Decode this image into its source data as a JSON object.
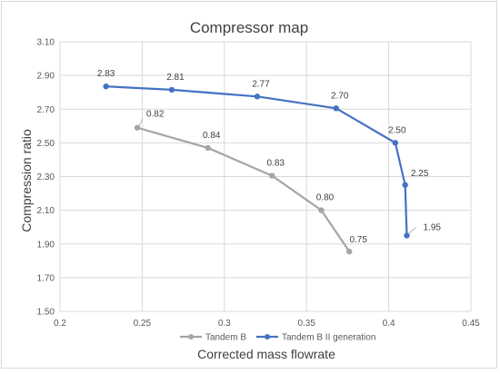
{
  "chart_data": {
    "type": "scatter",
    "title": "Compressor map",
    "xlabel": "Corrected mass flowrate",
    "ylabel": "Compression ratio",
    "xlim": [
      0.2,
      0.45
    ],
    "ylim": [
      1.5,
      3.1
    ],
    "xticks": [
      0.2,
      0.25,
      0.3,
      0.35,
      0.4,
      0.45
    ],
    "yticks": [
      1.5,
      1.7,
      1.9,
      2.1,
      2.3,
      2.5,
      2.7,
      2.9,
      3.1
    ],
    "xtick_labels": [
      "0.2",
      "0.25",
      "0.3",
      "0.35",
      "0.4",
      "0.45"
    ],
    "ytick_labels": [
      "1.50",
      "1.70",
      "1.90",
      "2.10",
      "2.30",
      "2.50",
      "2.70",
      "2.90",
      "3.10"
    ],
    "grid": true,
    "legend_position": "bottom",
    "series": [
      {
        "name": "Tandem B",
        "color": "#a5a5a5",
        "x": [
          0.247,
          0.29,
          0.329,
          0.359,
          0.376
        ],
        "y": [
          2.59,
          2.47,
          2.305,
          2.1,
          1.855
        ],
        "labels": [
          "0.82",
          "0.84",
          "0.83",
          "0.80",
          "0.75"
        ]
      },
      {
        "name": "Tandem B II generation",
        "color": "#4472c4",
        "x": [
          0.228,
          0.268,
          0.32,
          0.368,
          0.404,
          0.41,
          0.411
        ],
        "y": [
          2.835,
          2.815,
          2.775,
          2.705,
          2.5,
          2.25,
          1.95
        ],
        "labels": [
          "2.83",
          "2.81",
          "2.77",
          "2.70",
          "2.50",
          "2.25",
          "1.95"
        ]
      }
    ]
  }
}
